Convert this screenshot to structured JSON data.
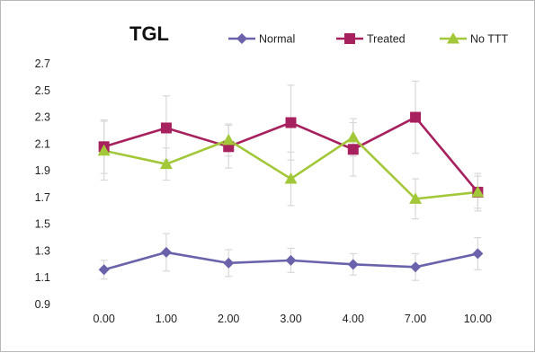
{
  "chart_data": {
    "type": "line",
    "title": "TGL",
    "xlabel": "",
    "ylabel": "",
    "categories": [
      "0.00",
      "1.00",
      "2.00",
      "3.00",
      "4.00",
      "7.00",
      "10.00"
    ],
    "ylim": [
      0.9,
      2.7
    ],
    "yticks": [
      "0.9",
      "1.1",
      "1.3",
      "1.5",
      "1.7",
      "1.9",
      "2.1",
      "2.3",
      "2.5",
      "2.7"
    ],
    "grid": false,
    "legend_position": "top-right",
    "error_bars": true,
    "series": [
      {
        "name": "Normal",
        "color": "#6a63ab",
        "marker": "diamond",
        "values": [
          1.16,
          1.29,
          1.21,
          1.23,
          1.2,
          1.18,
          1.28
        ],
        "errors": [
          0.07,
          0.14,
          0.1,
          0.09,
          0.08,
          0.1,
          0.12
        ]
      },
      {
        "name": "Treated",
        "color": "#a8215f",
        "marker": "square",
        "values": [
          2.08,
          2.22,
          2.08,
          2.26,
          2.06,
          2.3,
          1.74
        ],
        "errors": [
          0.2,
          0.24,
          0.16,
          0.28,
          0.2,
          0.27,
          0.14
        ]
      },
      {
        "name": "No TTT",
        "color": "#a2c739",
        "marker": "triangle",
        "values": [
          2.05,
          1.95,
          2.13,
          1.84,
          2.15,
          1.69,
          1.74
        ],
        "errors": [
          0.22,
          0.12,
          0.12,
          0.2,
          0.14,
          0.15,
          0.12
        ]
      }
    ]
  }
}
